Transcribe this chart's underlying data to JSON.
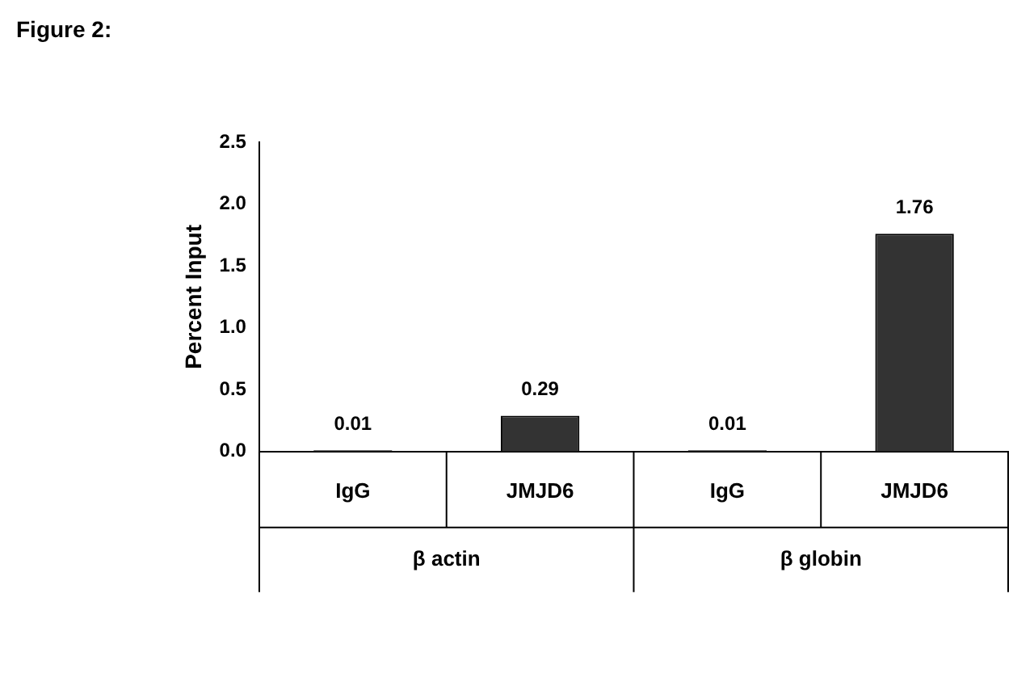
{
  "chart_data": {
    "type": "bar",
    "title": "Figure 2:",
    "ylabel": "Percent Input",
    "categories": [
      "IgG",
      "JMJD6",
      "IgG",
      "JMJD6"
    ],
    "values": [
      0.01,
      0.29,
      0.01,
      1.76
    ],
    "color": "#333333",
    "ylim": [
      0,
      2.5
    ],
    "yticks": [
      {
        "value": 0,
        "label": "0.0"
      },
      {
        "value": 0.5,
        "label": "0.5"
      },
      {
        "value": 1,
        "label": "1.0"
      },
      {
        "value": 1.5,
        "label": "1.5"
      },
      {
        "value": 2,
        "label": "2.0"
      },
      {
        "value": 2.5,
        "label": "2.5"
      }
    ],
    "annotations": [
      "β actin",
      "β globin"
    ],
    "data_labels": true,
    "grid": false,
    "legend": false
  }
}
